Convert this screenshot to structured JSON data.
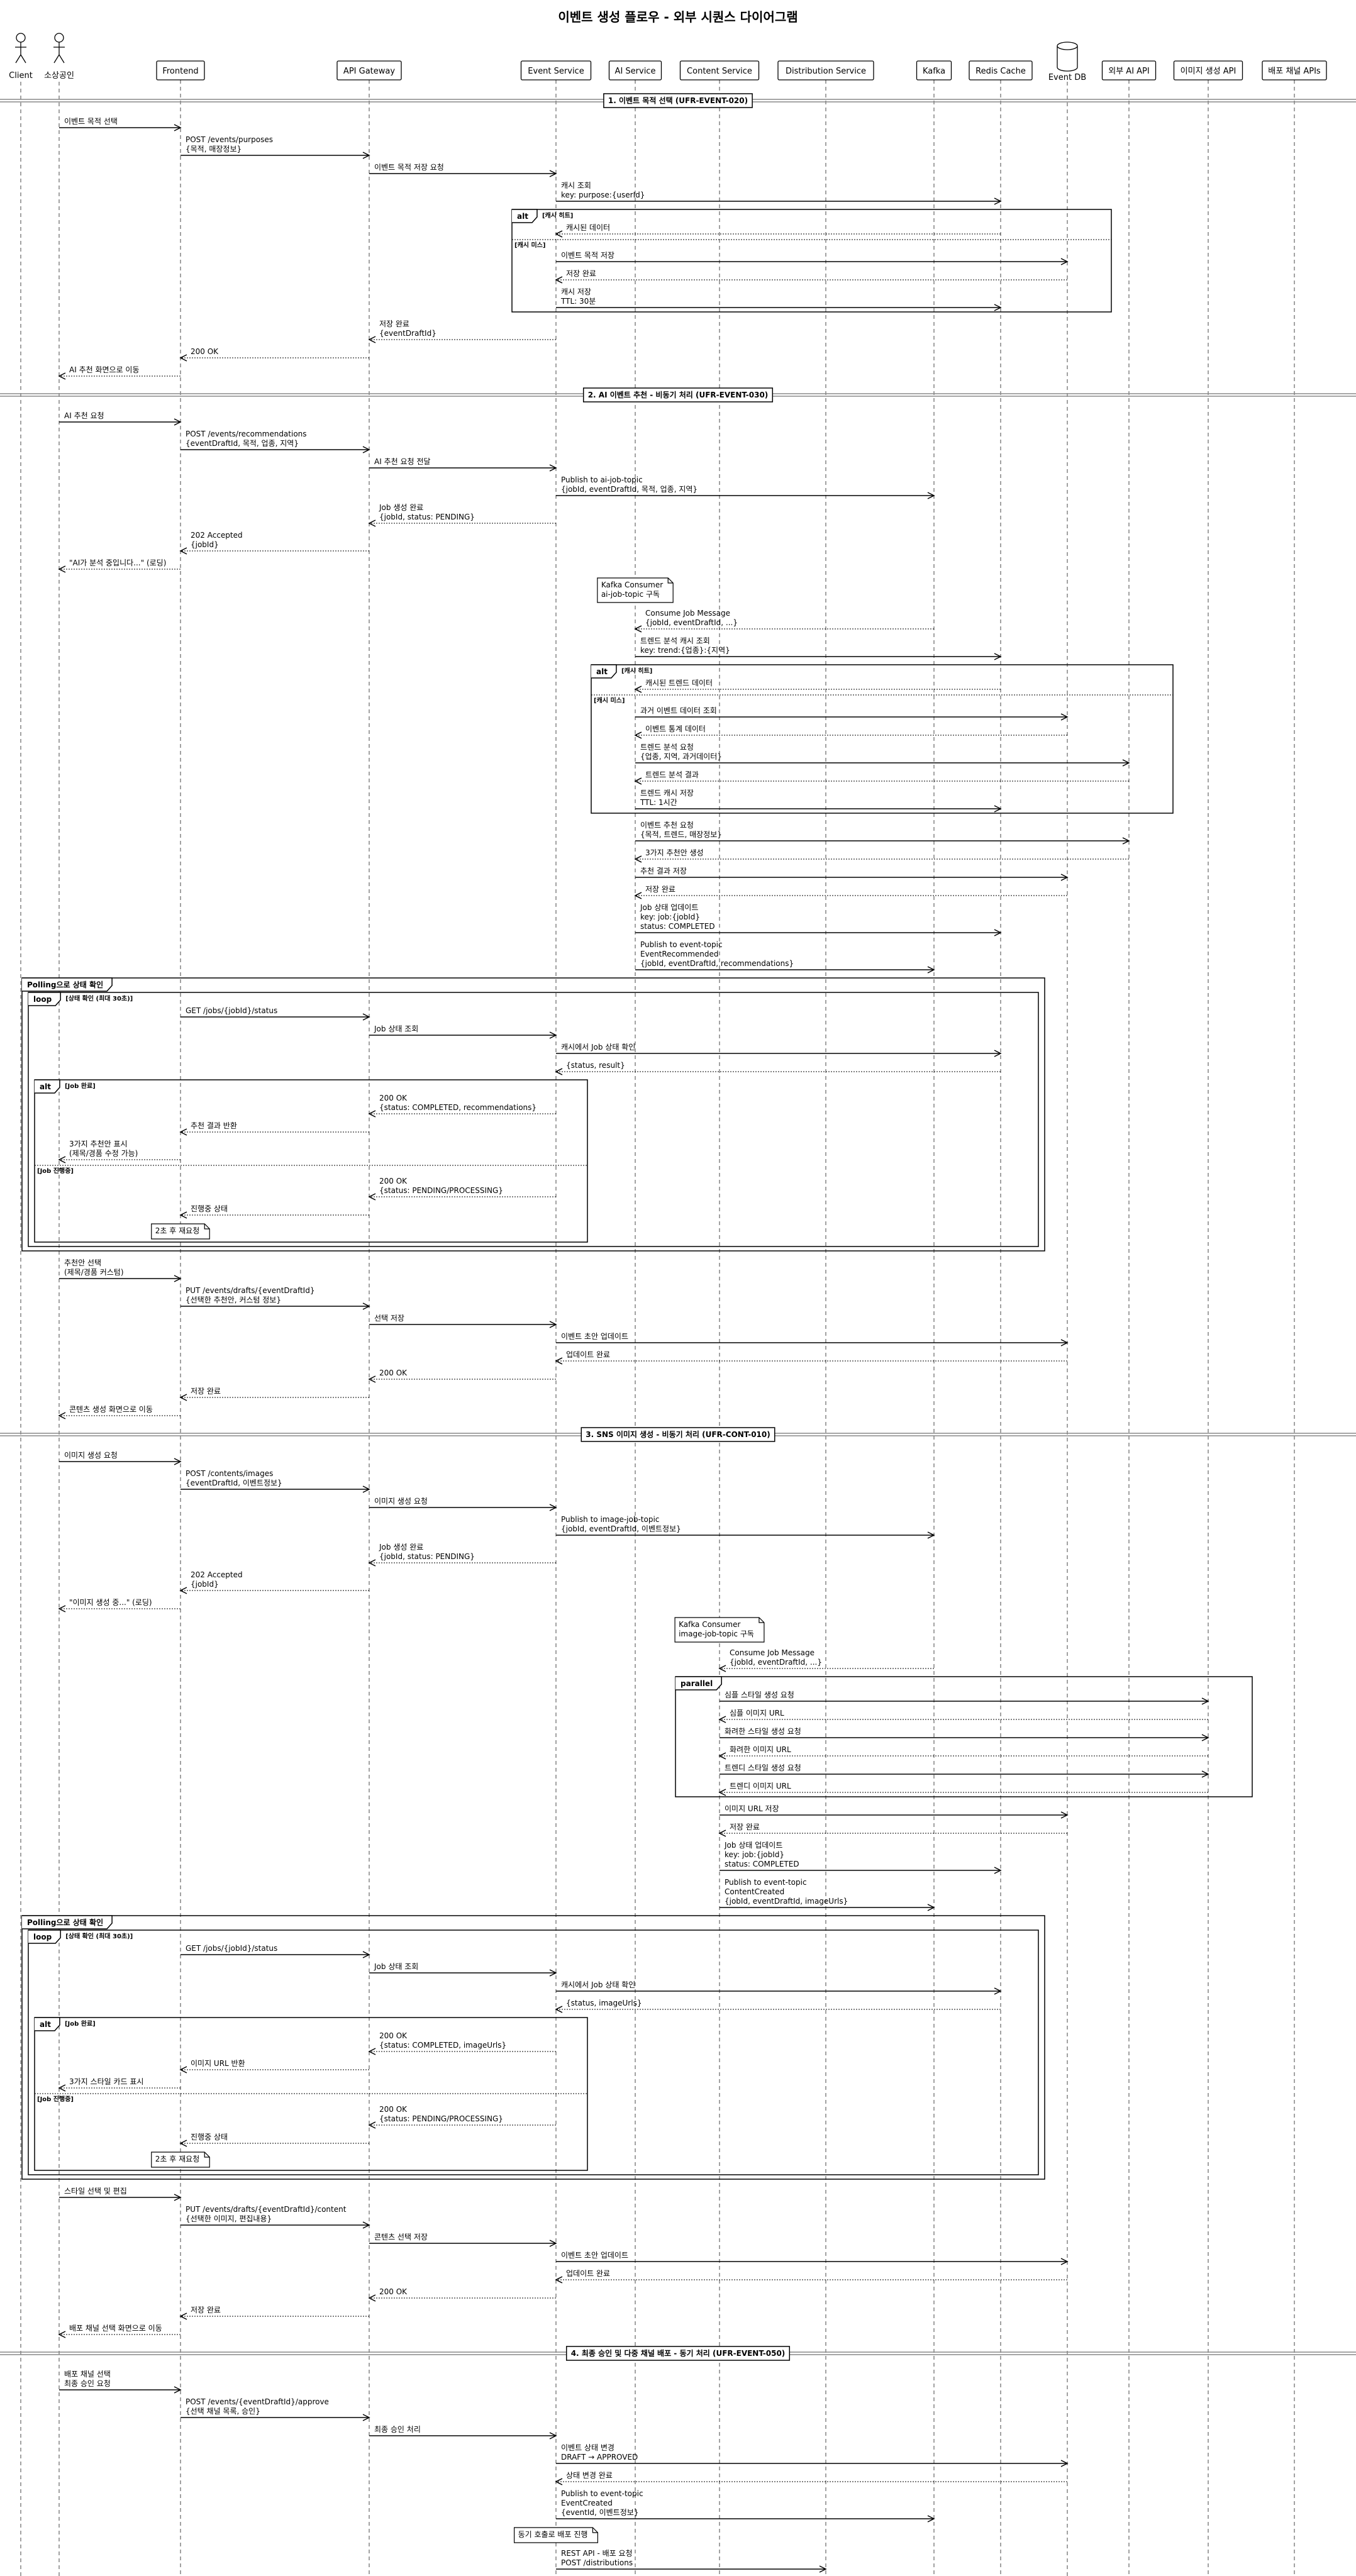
{
  "title": "이벤트 생성 플로우 - 외부 시퀀스 다이어그램",
  "participants": [
    {
      "name": "Client",
      "type": "actor"
    },
    {
      "name": "소상공인",
      "type": "actor"
    },
    {
      "name": "Frontend",
      "type": "participant"
    },
    {
      "name": "API Gateway",
      "type": "participant"
    },
    {
      "name": "Event Service",
      "type": "participant"
    },
    {
      "name": "AI Service",
      "type": "participant"
    },
    {
      "name": "Content Service",
      "type": "participant"
    },
    {
      "name": "Distribution Service",
      "type": "participant"
    },
    {
      "name": "Kafka",
      "type": "participant"
    },
    {
      "name": "Redis Cache",
      "type": "participant"
    },
    {
      "name": "Event DB",
      "type": "database"
    },
    {
      "name": "외부 AI API",
      "type": "participant"
    },
    {
      "name": "이미지 생성 API",
      "type": "participant"
    },
    {
      "name": "배포 채널 APIs",
      "type": "participant"
    }
  ],
  "steps": [
    {
      "t": "div",
      "label": "1. 이벤트 목적 선택 (UFR-EVENT-020)"
    },
    {
      "t": "m",
      "f": 1,
      "to": 2,
      "text": [
        "이벤트 목적 선택"
      ]
    },
    {
      "t": "m",
      "f": 2,
      "to": 3,
      "text": [
        "POST /events/purposes",
        "{목적, 매장정보}"
      ]
    },
    {
      "t": "m",
      "f": 3,
      "to": 4,
      "text": [
        "이벤트 목적 저장 요청"
      ]
    },
    {
      "t": "m",
      "f": 4,
      "to": 9,
      "text": [
        "캐시 조회",
        "key: purpose:{userId}"
      ]
    },
    {
      "t": "frame",
      "kind": "alt",
      "cond": "[캐시 히트]"
    },
    {
      "t": "r",
      "f": 9,
      "to": 4,
      "text": [
        "캐시된 데이터"
      ]
    },
    {
      "t": "else",
      "cond": "[캐시 미스]"
    },
    {
      "t": "m",
      "f": 4,
      "to": 10,
      "text": [
        "이벤트 목적 저장"
      ]
    },
    {
      "t": "r",
      "f": 10,
      "to": 4,
      "text": [
        "저장 완료"
      ]
    },
    {
      "t": "m",
      "f": 4,
      "to": 9,
      "text": [
        "캐시 저장",
        "TTL: 30분"
      ]
    },
    {
      "t": "end"
    },
    {
      "t": "r",
      "f": 4,
      "to": 3,
      "text": [
        "저장 완료",
        "{eventDraftId}"
      ]
    },
    {
      "t": "r",
      "f": 3,
      "to": 2,
      "text": [
        "200 OK"
      ]
    },
    {
      "t": "r",
      "f": 2,
      "to": 1,
      "text": [
        "AI 추천 화면으로 이동"
      ]
    },
    {
      "t": "div",
      "label": "2. AI 이벤트 추천 - 비동기 처리 (UFR-EVENT-030)"
    },
    {
      "t": "m",
      "f": 1,
      "to": 2,
      "text": [
        "AI 추천 요청"
      ]
    },
    {
      "t": "m",
      "f": 2,
      "to": 3,
      "text": [
        "POST /events/recommendations",
        "{eventDraftId, 목적, 업종, 지역}"
      ]
    },
    {
      "t": "m",
      "f": 3,
      "to": 4,
      "text": [
        "AI 추천 요청 전달"
      ]
    },
    {
      "t": "m",
      "f": 4,
      "to": 8,
      "text": [
        "Publish to ai-job-topic",
        "{jobId, eventDraftId, 목적, 업종, 지역}"
      ]
    },
    {
      "t": "r",
      "f": 4,
      "to": 3,
      "text": [
        "Job 생성 완료",
        "{jobId, status: PENDING}"
      ]
    },
    {
      "t": "r",
      "f": 3,
      "to": 2,
      "text": [
        "202 Accepted",
        "{jobId}"
      ]
    },
    {
      "t": "r",
      "f": 2,
      "to": 1,
      "text": [
        "\"AI가 분석 중입니다...\" (로딩)"
      ]
    },
    {
      "t": "note",
      "over": 5,
      "text": [
        "Kafka Consumer",
        "ai-job-topic 구독"
      ]
    },
    {
      "t": "r",
      "f": 8,
      "to": 5,
      "text": [
        "Consume Job Message",
        "{jobId, eventDraftId, ...}"
      ]
    },
    {
      "t": "m",
      "f": 5,
      "to": 9,
      "text": [
        "트렌드 분석 캐시 조회",
        "key: trend:{업종}:{지역}"
      ]
    },
    {
      "t": "frame",
      "kind": "alt",
      "cond": "[캐시 히트]"
    },
    {
      "t": "r",
      "f": 9,
      "to": 5,
      "text": [
        "캐시된 트렌드 데이터"
      ]
    },
    {
      "t": "else",
      "cond": "[캐시 미스]"
    },
    {
      "t": "m",
      "f": 5,
      "to": 10,
      "text": [
        "과거 이벤트 데이터 조회"
      ]
    },
    {
      "t": "r",
      "f": 10,
      "to": 5,
      "text": [
        "이벤트 통계 데이터"
      ]
    },
    {
      "t": "m",
      "f": 5,
      "to": 11,
      "text": [
        "트렌드 분석 요청",
        "{업종, 지역, 과거데이터}"
      ]
    },
    {
      "t": "r",
      "f": 11,
      "to": 5,
      "text": [
        "트렌드 분석 결과"
      ]
    },
    {
      "t": "m",
      "f": 5,
      "to": 9,
      "text": [
        "트렌드 캐시 저장",
        "TTL: 1시간"
      ]
    },
    {
      "t": "end"
    },
    {
      "t": "m",
      "f": 5,
      "to": 11,
      "text": [
        "이벤트 추천 요청",
        "{목적, 트렌드, 매장정보}"
      ]
    },
    {
      "t": "r",
      "f": 11,
      "to": 5,
      "text": [
        "3가지 추천안 생성"
      ]
    },
    {
      "t": "m",
      "f": 5,
      "to": 10,
      "text": [
        "추천 결과 저장"
      ]
    },
    {
      "t": "r",
      "f": 10,
      "to": 5,
      "text": [
        "저장 완료"
      ]
    },
    {
      "t": "m",
      "f": 5,
      "to": 9,
      "text": [
        "Job 상태 업데이트",
        "key: job:{jobId}",
        "status: COMPLETED"
      ]
    },
    {
      "t": "m",
      "f": 5,
      "to": 8,
      "text": [
        "Publish to event-topic",
        "EventRecommended",
        "{jobId, eventDraftId, recommendations}"
      ]
    },
    {
      "t": "frame",
      "kind": "Polling으로 상태 확인",
      "cond": ""
    },
    {
      "t": "frame",
      "kind": "loop",
      "cond": "[상태 확인 (최대 30초)]"
    },
    {
      "t": "m",
      "f": 2,
      "to": 3,
      "text": [
        "GET /jobs/{jobId}/status"
      ]
    },
    {
      "t": "m",
      "f": 3,
      "to": 4,
      "text": [
        "Job 상태 조회"
      ]
    },
    {
      "t": "m",
      "f": 4,
      "to": 9,
      "text": [
        "캐시에서 Job 상태 확인"
      ]
    },
    {
      "t": "r",
      "f": 9,
      "to": 4,
      "text": [
        "{status, result}"
      ]
    },
    {
      "t": "frame",
      "kind": "alt",
      "cond": "[Job 완료]"
    },
    {
      "t": "r",
      "f": 4,
      "to": 3,
      "text": [
        "200 OK",
        "{status: COMPLETED, recommendations}"
      ]
    },
    {
      "t": "r",
      "f": 3,
      "to": 2,
      "text": [
        "추천 결과 반환"
      ]
    },
    {
      "t": "r",
      "f": 2,
      "to": 1,
      "text": [
        "3가지 추천안 표시",
        "(제목/경품 수정 가능)"
      ]
    },
    {
      "t": "else",
      "cond": "[Job 진행중]"
    },
    {
      "t": "r",
      "f": 4,
      "to": 3,
      "text": [
        "200 OK",
        "{status: PENDING/PROCESSING}"
      ]
    },
    {
      "t": "r",
      "f": 3,
      "to": 2,
      "text": [
        "진행중 상태"
      ]
    },
    {
      "t": "note",
      "over": 2,
      "text": [
        "2초 후 재요청"
      ]
    },
    {
      "t": "end"
    },
    {
      "t": "end"
    },
    {
      "t": "end"
    },
    {
      "t": "m",
      "f": 1,
      "to": 2,
      "text": [
        "추천안 선택",
        "(제목/경품 커스텀)"
      ]
    },
    {
      "t": "m",
      "f": 2,
      "to": 3,
      "text": [
        "PUT /events/drafts/{eventDraftId}",
        "{선택한 추천안, 커스텀 정보}"
      ]
    },
    {
      "t": "m",
      "f": 3,
      "to": 4,
      "text": [
        "선택 저장"
      ]
    },
    {
      "t": "m",
      "f": 4,
      "to": 10,
      "text": [
        "이벤트 초안 업데이트"
      ]
    },
    {
      "t": "r",
      "f": 10,
      "to": 4,
      "text": [
        "업데이트 완료"
      ]
    },
    {
      "t": "r",
      "f": 4,
      "to": 3,
      "text": [
        "200 OK"
      ]
    },
    {
      "t": "r",
      "f": 3,
      "to": 2,
      "text": [
        "저장 완료"
      ]
    },
    {
      "t": "r",
      "f": 2,
      "to": 1,
      "text": [
        "콘텐츠 생성 화면으로 이동"
      ]
    },
    {
      "t": "div",
      "label": "3. SNS 이미지 생성 - 비동기 처리 (UFR-CONT-010)"
    },
    {
      "t": "m",
      "f": 1,
      "to": 2,
      "text": [
        "이미지 생성 요청"
      ]
    },
    {
      "t": "m",
      "f": 2,
      "to": 3,
      "text": [
        "POST /contents/images",
        "{eventDraftId, 이벤트정보}"
      ]
    },
    {
      "t": "m",
      "f": 3,
      "to": 4,
      "text": [
        "이미지 생성 요청"
      ]
    },
    {
      "t": "m",
      "f": 4,
      "to": 8,
      "text": [
        "Publish to image-job-topic",
        "{jobId, eventDraftId, 이벤트정보}"
      ]
    },
    {
      "t": "r",
      "f": 4,
      "to": 3,
      "text": [
        "Job 생성 완료",
        "{jobId, status: PENDING}"
      ]
    },
    {
      "t": "r",
      "f": 3,
      "to": 2,
      "text": [
        "202 Accepted",
        "{jobId}"
      ]
    },
    {
      "t": "r",
      "f": 2,
      "to": 1,
      "text": [
        "\"이미지 생성 중...\" (로딩)"
      ]
    },
    {
      "t": "note",
      "over": 6,
      "text": [
        "Kafka Consumer",
        "image-job-topic 구독"
      ]
    },
    {
      "t": "r",
      "f": 8,
      "to": 6,
      "text": [
        "Consume Job Message",
        "{jobId, eventDraftId, ...}"
      ]
    },
    {
      "t": "frame",
      "kind": "parallel",
      "cond": ""
    },
    {
      "t": "m",
      "f": 6,
      "to": 12,
      "text": [
        "심플 스타일 생성 요청"
      ]
    },
    {
      "t": "r",
      "f": 12,
      "to": 6,
      "text": [
        "심플 이미지 URL"
      ]
    },
    {
      "t": "m",
      "f": 6,
      "to": 12,
      "text": [
        "화려한 스타일 생성 요청"
      ]
    },
    {
      "t": "r",
      "f": 12,
      "to": 6,
      "text": [
        "화려한 이미지 URL"
      ]
    },
    {
      "t": "m",
      "f": 6,
      "to": 12,
      "text": [
        "트렌디 스타일 생성 요청"
      ]
    },
    {
      "t": "r",
      "f": 12,
      "to": 6,
      "text": [
        "트렌디 이미지 URL"
      ]
    },
    {
      "t": "end"
    },
    {
      "t": "m",
      "f": 6,
      "to": 10,
      "text": [
        "이미지 URL 저장"
      ]
    },
    {
      "t": "r",
      "f": 10,
      "to": 6,
      "text": [
        "저장 완료"
      ]
    },
    {
      "t": "m",
      "f": 6,
      "to": 9,
      "text": [
        "Job 상태 업데이트",
        "key: job:{jobId}",
        "status: COMPLETED"
      ]
    },
    {
      "t": "m",
      "f": 6,
      "to": 8,
      "text": [
        "Publish to event-topic",
        "ContentCreated",
        "{jobId, eventDraftId, imageUrls}"
      ]
    },
    {
      "t": "frame",
      "kind": "Polling으로 상태 확인",
      "cond": ""
    },
    {
      "t": "frame",
      "kind": "loop",
      "cond": "[상태 확인 (최대 30초)]"
    },
    {
      "t": "m",
      "f": 2,
      "to": 3,
      "text": [
        "GET /jobs/{jobId}/status"
      ]
    },
    {
      "t": "m",
      "f": 3,
      "to": 4,
      "text": [
        "Job 상태 조회"
      ]
    },
    {
      "t": "m",
      "f": 4,
      "to": 9,
      "text": [
        "캐시에서 Job 상태 확인"
      ]
    },
    {
      "t": "r",
      "f": 9,
      "to": 4,
      "text": [
        "{status, imageUrls}"
      ]
    },
    {
      "t": "frame",
      "kind": "alt",
      "cond": "[Job 완료]"
    },
    {
      "t": "r",
      "f": 4,
      "to": 3,
      "text": [
        "200 OK",
        "{status: COMPLETED, imageUrls}"
      ]
    },
    {
      "t": "r",
      "f": 3,
      "to": 2,
      "text": [
        "이미지 URL 반환"
      ]
    },
    {
      "t": "r",
      "f": 2,
      "to": 1,
      "text": [
        "3가지 스타일 카드 표시"
      ]
    },
    {
      "t": "else",
      "cond": "[Job 진행중]"
    },
    {
      "t": "r",
      "f": 4,
      "to": 3,
      "text": [
        "200 OK",
        "{status: PENDING/PROCESSING}"
      ]
    },
    {
      "t": "r",
      "f": 3,
      "to": 2,
      "text": [
        "진행중 상태"
      ]
    },
    {
      "t": "note",
      "over": 2,
      "text": [
        "2초 후 재요청"
      ]
    },
    {
      "t": "end"
    },
    {
      "t": "end"
    },
    {
      "t": "end"
    },
    {
      "t": "m",
      "f": 1,
      "to": 2,
      "text": [
        "스타일 선택 및 편집"
      ]
    },
    {
      "t": "m",
      "f": 2,
      "to": 3,
      "text": [
        "PUT /events/drafts/{eventDraftId}/content",
        "{선택한 이미지, 편집내용}"
      ]
    },
    {
      "t": "m",
      "f": 3,
      "to": 4,
      "text": [
        "콘텐츠 선택 저장"
      ]
    },
    {
      "t": "m",
      "f": 4,
      "to": 10,
      "text": [
        "이벤트 초안 업데이트"
      ]
    },
    {
      "t": "r",
      "f": 10,
      "to": 4,
      "text": [
        "업데이트 완료"
      ]
    },
    {
      "t": "r",
      "f": 4,
      "to": 3,
      "text": [
        "200 OK"
      ]
    },
    {
      "t": "r",
      "f": 3,
      "to": 2,
      "text": [
        "저장 완료"
      ]
    },
    {
      "t": "r",
      "f": 2,
      "to": 1,
      "text": [
        "배포 채널 선택 화면으로 이동"
      ]
    },
    {
      "t": "div",
      "label": "4. 최종 승인 및 다중 채널 배포 - 동기 처리 (UFR-EVENT-050)"
    },
    {
      "t": "m",
      "f": 1,
      "to": 2,
      "text": [
        "배포 채널 선택",
        "최종 승인 요청"
      ]
    },
    {
      "t": "m",
      "f": 2,
      "to": 3,
      "text": [
        "POST /events/{eventDraftId}/approve",
        "{선택 채널 목록, 승인}"
      ]
    },
    {
      "t": "m",
      "f": 3,
      "to": 4,
      "text": [
        "최종 승인 처리"
      ]
    },
    {
      "t": "m",
      "f": 4,
      "to": 10,
      "text": [
        "이벤트 상태 변경",
        "DRAFT → APPROVED"
      ]
    },
    {
      "t": "r",
      "f": 10,
      "to": 4,
      "text": [
        "상태 변경 완료"
      ]
    },
    {
      "t": "m",
      "f": 4,
      "to": 8,
      "text": [
        "Publish to event-topic",
        "EventCreated",
        "{eventId, 이벤트정보}"
      ]
    },
    {
      "t": "note",
      "over": 4,
      "text": [
        "동기 호출로 배포 진행"
      ]
    },
    {
      "t": "m",
      "f": 4,
      "to": 7,
      "text": [
        "REST API - 배포 요청",
        "POST /distributions"
      ]
    }
  ]
}
